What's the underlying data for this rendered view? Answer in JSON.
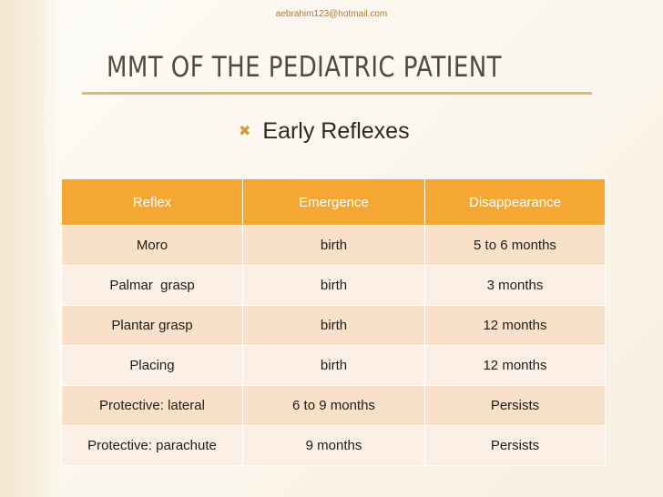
{
  "email": "aebrahim123@hotmail.com",
  "title": "MMT of the Pediatric Patient",
  "bullet": {
    "icon": "x-mark-bullet-icon",
    "text": "Early Reflexes"
  },
  "colors": {
    "header": "#f5a733",
    "accent": "#d69b39",
    "rule": "#e6b56e",
    "row_odd": "#f9e0c9",
    "row_even": "#fcf0e6"
  },
  "table": {
    "headers": [
      "Reflex",
      "Emergence",
      "Disappearance"
    ],
    "rows": [
      [
        "Moro",
        "birth",
        "5 to 6 months"
      ],
      [
        "Palmar  grasp",
        "birth",
        "3 months"
      ],
      [
        "Plantar grasp",
        "birth",
        "12 months"
      ],
      [
        "Placing",
        "birth",
        "12 months"
      ],
      [
        "Protective: lateral",
        "6 to 9 months",
        "Persists"
      ],
      [
        "Protective: parachute",
        "9 months",
        "Persists"
      ]
    ]
  }
}
